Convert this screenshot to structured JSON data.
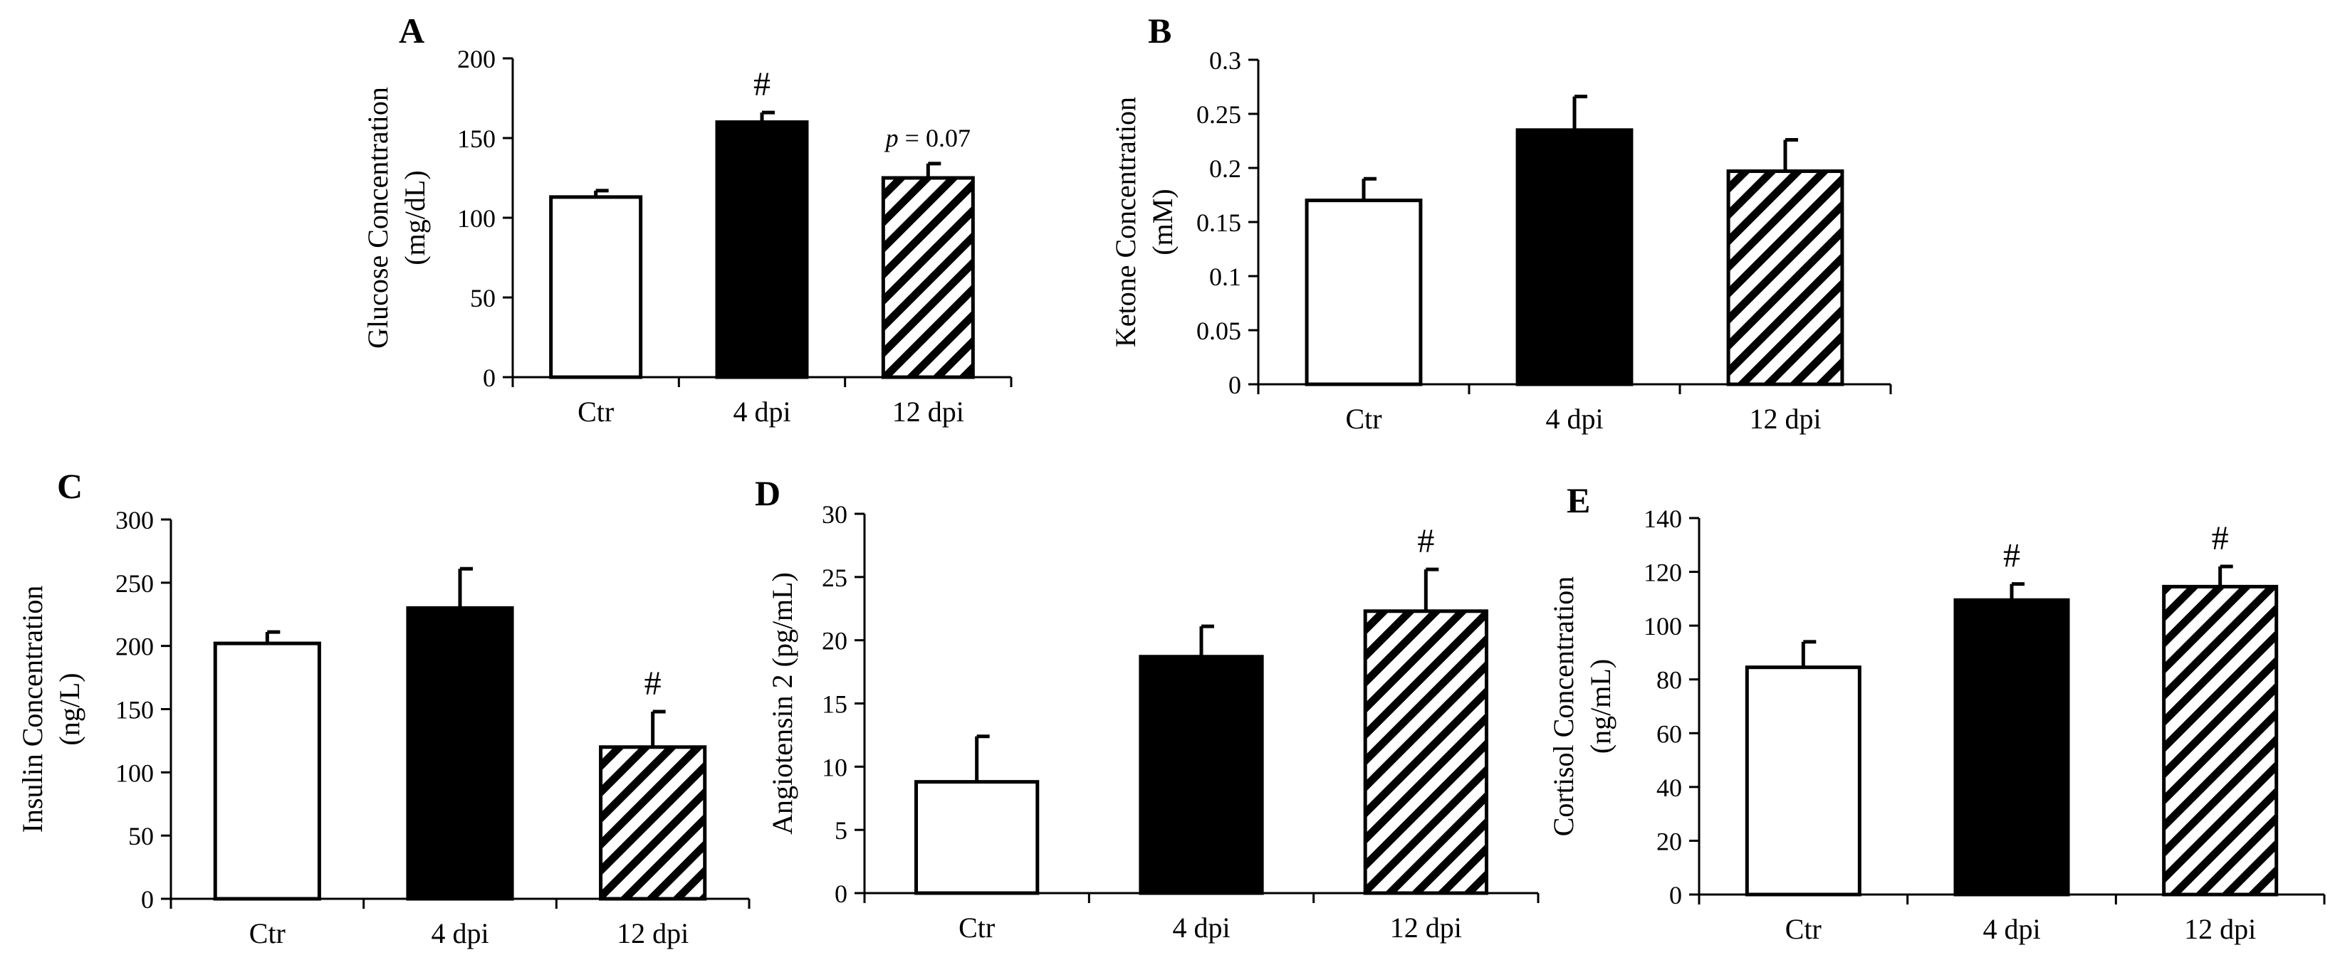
{
  "chart_data": [
    {
      "panel": "A",
      "type": "bar",
      "categories": [
        "Ctr",
        "4 dpi",
        "12 dpi"
      ],
      "values": [
        113,
        160,
        125
      ],
      "errors": [
        4,
        6,
        9
      ],
      "annotations": [
        "",
        "#",
        "p = 0.07"
      ],
      "ylabel_line1": "Glucose Concentration",
      "ylabel_line2": "(mg/dL)",
      "ylim": [
        0,
        200
      ],
      "yticks": [
        "0",
        "50",
        "100",
        "150",
        "200"
      ],
      "fills": [
        "white",
        "black",
        "hatch"
      ]
    },
    {
      "panel": "B",
      "type": "bar",
      "categories": [
        "Ctr",
        "4 dpi",
        "12 dpi"
      ],
      "values": [
        0.17,
        0.235,
        0.197
      ],
      "errors": [
        0.02,
        0.031,
        0.029
      ],
      "annotations": [
        "",
        "",
        ""
      ],
      "ylabel_line1": "Ketone Concentration",
      "ylabel_line2": "(mM)",
      "ylim": [
        0,
        0.3
      ],
      "yticks": [
        "0",
        "0.05",
        "0.1",
        "0.15",
        "0.2",
        "0.25",
        "0.3"
      ],
      "fills": [
        "white",
        "black",
        "hatch"
      ]
    },
    {
      "panel": "C",
      "type": "bar",
      "categories": [
        "Ctr",
        "4 dpi",
        "12 dpi"
      ],
      "values": [
        202,
        230,
        120
      ],
      "errors": [
        9,
        31,
        28
      ],
      "annotations": [
        "",
        "",
        "#"
      ],
      "ylabel_line1": "Insulin Concentration",
      "ylabel_line2": "(ng/L)",
      "ylim": [
        0,
        300
      ],
      "yticks": [
        "0",
        "50",
        "100",
        "150",
        "200",
        "250",
        "300"
      ],
      "fills": [
        "white",
        "black",
        "hatch"
      ]
    },
    {
      "panel": "D",
      "type": "bar",
      "categories": [
        "Ctr",
        "4 dpi",
        "12 dpi"
      ],
      "values": [
        8.8,
        18.7,
        22.3
      ],
      "errors": [
        3.6,
        2.4,
        3.3
      ],
      "annotations": [
        "",
        "",
        "#"
      ],
      "ylabel_line1": "Angiotensin 2 (pg/mL)",
      "ylabel_line2": "",
      "ylim": [
        0,
        30
      ],
      "yticks": [
        "0",
        "5",
        "10",
        "15",
        "20",
        "25",
        "30"
      ],
      "fills": [
        "white",
        "black",
        "hatch"
      ]
    },
    {
      "panel": "E",
      "type": "bar",
      "categories": [
        "Ctr",
        "4 dpi",
        "12 dpi"
      ],
      "values": [
        84.5,
        109.5,
        114.5
      ],
      "errors": [
        9.5,
        6,
        7.5
      ],
      "annotations": [
        "",
        "#",
        "#"
      ],
      "ylabel_line1": "Cortisol Concentration",
      "ylabel_line2": "(ng/mL)",
      "ylim": [
        0,
        140
      ],
      "yticks": [
        "0",
        "20",
        "40",
        "60",
        "80",
        "100",
        "120",
        "140"
      ],
      "fills": [
        "white",
        "black",
        "hatch"
      ]
    }
  ]
}
